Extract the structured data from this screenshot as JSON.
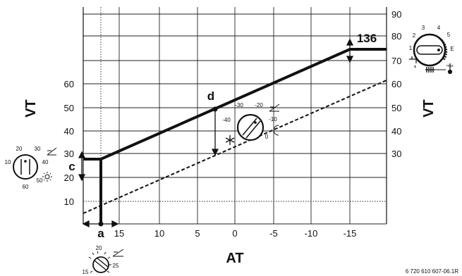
{
  "diagram": {
    "left_axis_label": "VT",
    "right_axis_label": "VT",
    "bottom_axis_label": "AT",
    "left_ticks": [
      "60",
      "50",
      "40",
      "30",
      "20",
      "10"
    ],
    "right_ticks": [
      "90",
      "80",
      "70",
      "60",
      "50",
      "40",
      "30"
    ],
    "bottom_ticks": [
      "15",
      "10",
      "5",
      "0",
      "-5",
      "-10",
      "-15"
    ],
    "marker_a": "a",
    "marker_c": "c",
    "marker_d": "d",
    "value_136": "136",
    "figure_code": "6 720 610 607-06.1R"
  },
  "dial_left": {
    "ticks": [
      "10",
      "20",
      "30",
      "40",
      "50",
      "60"
    ]
  },
  "dial_center": {
    "ticks": [
      "-40",
      "-30",
      "-20",
      "-10",
      "0"
    ]
  },
  "dial_bottom": {
    "ticks": [
      "20",
      "25",
      "15"
    ]
  },
  "dial_top_right": {
    "ticks": [
      "1",
      "2",
      "3",
      "4",
      "5",
      "E",
      "max"
    ]
  }
}
